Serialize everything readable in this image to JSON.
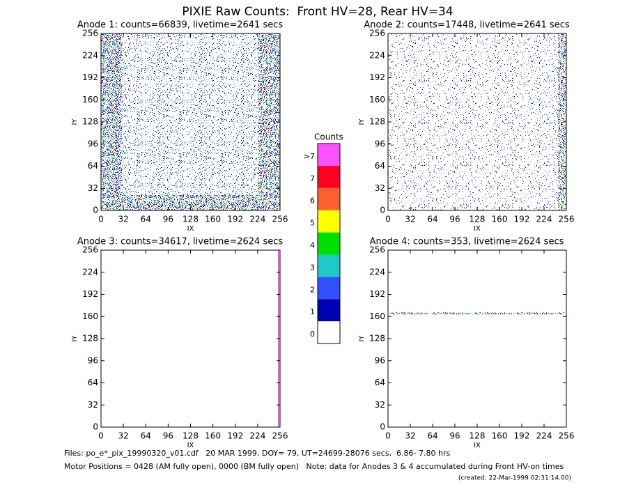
{
  "title": "PIXIE Raw Counts:  Front HV=28, Rear HV=34",
  "chart_data": [
    {
      "type": "heatmap",
      "title": "Anode 1: counts=66839, livetime=2641 secs",
      "xlabel": "IX",
      "ylabel": "IY",
      "xlim": [
        0,
        256
      ],
      "ylim": [
        0,
        256
      ],
      "xticks": [
        0,
        32,
        64,
        96,
        128,
        160,
        192,
        224,
        256
      ],
      "yticks": [
        0,
        32,
        64,
        96,
        128,
        160,
        192,
        224,
        256
      ]
    },
    {
      "type": "heatmap",
      "title": "Anode 2: counts=17448, livetime=2641 secs",
      "xlabel": "IX",
      "ylabel": "IY",
      "xlim": [
        0,
        256
      ],
      "ylim": [
        0,
        256
      ],
      "xticks": [
        0,
        32,
        64,
        96,
        128,
        160,
        192,
        224,
        256
      ],
      "yticks": [
        0,
        32,
        64,
        96,
        128,
        160,
        192,
        224,
        256
      ]
    },
    {
      "type": "heatmap",
      "title": "Anode 3: counts=34617, livetime=2624 secs",
      "xlabel": "IX",
      "ylabel": "IY",
      "xlim": [
        0,
        256
      ],
      "ylim": [
        0,
        256
      ],
      "xticks": [
        0,
        32,
        64,
        96,
        128,
        160,
        192,
        224,
        256
      ],
      "yticks": [
        0,
        32,
        64,
        96,
        128,
        160,
        192,
        224,
        256
      ]
    },
    {
      "type": "heatmap",
      "title": "Anode 4: counts=353, livetime=2624 secs",
      "xlabel": "IX",
      "ylabel": "IY",
      "xlim": [
        0,
        256
      ],
      "ylim": [
        0,
        256
      ],
      "xticks": [
        0,
        32,
        64,
        96,
        128,
        160,
        192,
        224,
        256
      ],
      "yticks": [
        0,
        32,
        64,
        96,
        128,
        160,
        192,
        224,
        256
      ]
    }
  ],
  "colorbar": {
    "title": "Counts",
    "labels": [
      "0",
      "1",
      "2",
      "3",
      "4",
      "5",
      "6",
      "7",
      ">7"
    ],
    "colors": [
      "#ffffff",
      "#0000b4",
      "#3050ff",
      "#20c8c8",
      "#00e000",
      "#ffff00",
      "#ff6030",
      "#ff0020",
      "#ff50ff"
    ]
  },
  "footer": [
    "Files: po_e*_pix_19990320_v01.cdf   20 MAR 1999, DOY= 79, UT=24699-28076 secs,  6.86- 7.80 hrs",
    "Motor Positions = 0428 (AM fully open), 0000 (BM fully open)   Note: data for Anodes 3 & 4 accumulated during Front HV-on times",
    "(created: 22-Mar-1999 02:31:14.00)"
  ]
}
